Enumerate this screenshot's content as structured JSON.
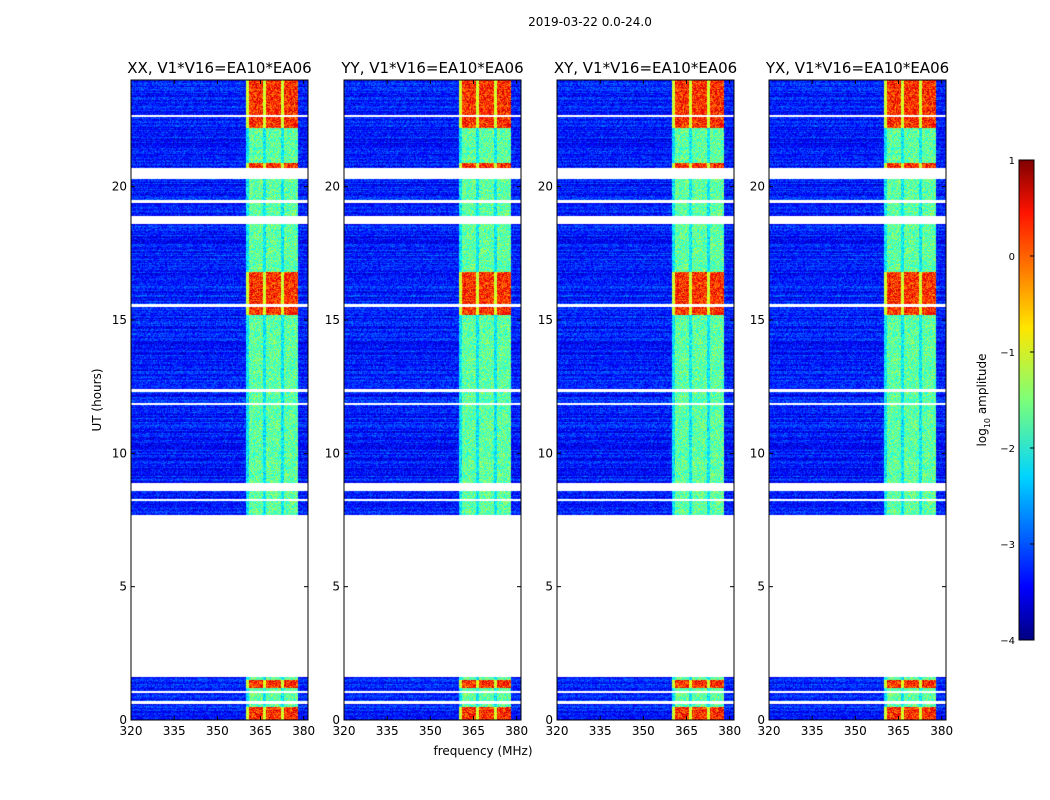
{
  "chart_data": {
    "type": "heatmap",
    "title": "2019-03-22 0.0-24.0",
    "xlabel": "frequency (MHz)",
    "ylabel": "UT (hours)",
    "xlim": [
      320,
      381.5
    ],
    "ylim": [
      0,
      24
    ],
    "xticks": [
      320,
      335,
      350,
      365,
      380
    ],
    "yticks": [
      0,
      5,
      10,
      15,
      20
    ],
    "panels": [
      {
        "title": "XX, V1*V16=EA10*EA06"
      },
      {
        "title": "YY, V1*V16=EA10*EA06"
      },
      {
        "title": "XY, V1*V16=EA10*EA06"
      },
      {
        "title": "YX, V1*V16=EA10*EA06"
      }
    ],
    "rfi_band_mhz": [
      360,
      378
    ],
    "rfi_channels_mhz": [
      363.5,
      369.5,
      375.5
    ],
    "data_ranges_hours": [
      [
        0,
        0.6
      ],
      [
        0.7,
        1.0
      ],
      [
        1.1,
        1.6
      ],
      [
        7.7,
        8.6
      ],
      [
        8.9,
        18.6
      ],
      [
        18.9,
        20.3
      ],
      [
        20.7,
        24
      ]
    ],
    "blank_hours": [
      [
        8.2,
        8.3
      ],
      [
        11.8,
        11.9
      ],
      [
        12.3,
        12.4
      ],
      [
        15.5,
        15.6
      ],
      [
        19.4,
        19.5
      ],
      [
        22.6,
        22.7
      ]
    ],
    "strong_intervals_hours": [
      [
        0,
        0.5
      ],
      [
        1.2,
        1.5
      ],
      [
        15.2,
        16.8
      ],
      [
        20.4,
        20.9
      ],
      [
        22.2,
        24
      ]
    ],
    "colorbar": {
      "label_prefix": "log",
      "label_sub": "10",
      "label_suffix": " amplitude",
      "range": [
        -4,
        1
      ],
      "ticks": [
        -4,
        -3,
        -2,
        -1,
        0,
        1
      ],
      "tick_labels": [
        "−4",
        "−3",
        "−2",
        "−1",
        "0",
        "1"
      ]
    }
  }
}
